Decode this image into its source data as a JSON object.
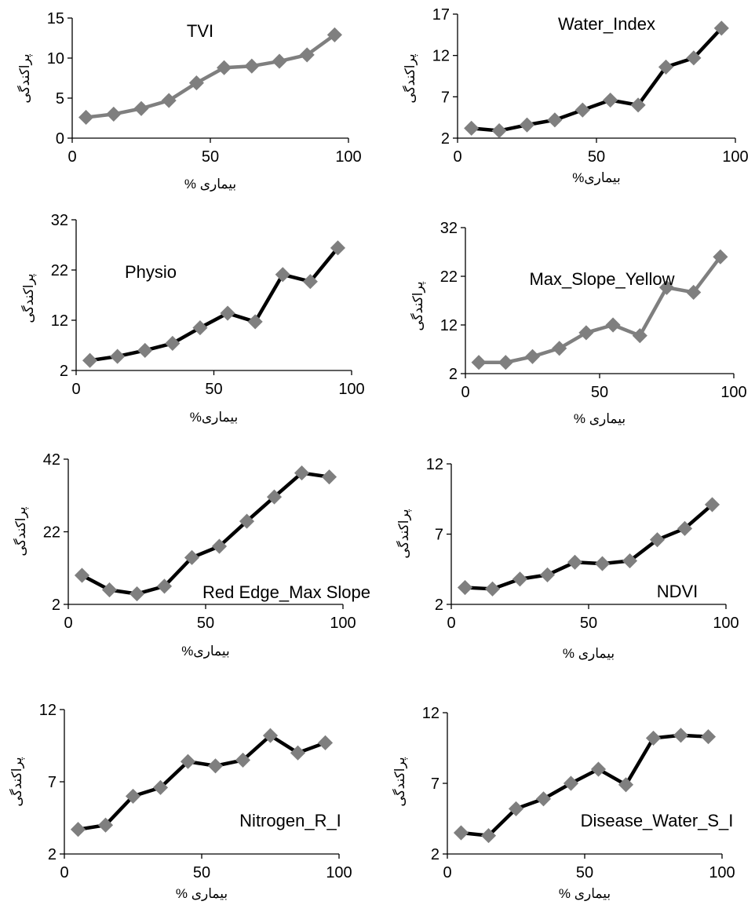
{
  "chart_data": [
    {
      "type": "line",
      "title": "TVI",
      "xlabel": "بیماری %",
      "ylabel": "پراکندگی",
      "xlim": [
        0,
        100
      ],
      "ylim": [
        0,
        15
      ],
      "xticks": [
        0,
        50,
        100
      ],
      "yticks": [
        0,
        5,
        10,
        15
      ],
      "x": [
        5,
        15,
        25,
        35,
        45,
        55,
        65,
        75,
        85,
        95
      ],
      "y": [
        2.6,
        3.0,
        3.7,
        4.7,
        6.9,
        8.8,
        9.0,
        9.6,
        10.4,
        12.9
      ],
      "line_color": "#7f7f7f",
      "marker_color": "#7f7f7f",
      "marker": "diamond",
      "grid": false,
      "legend": "none"
    },
    {
      "type": "line",
      "title": "Water_Index",
      "xlabel": "بیماری%",
      "ylabel": "پراکندگی",
      "xlim": [
        0,
        100
      ],
      "ylim": [
        2,
        17
      ],
      "xticks": [
        0,
        50,
        100
      ],
      "yticks": [
        2,
        7,
        12,
        17
      ],
      "x": [
        5,
        15,
        25,
        35,
        45,
        55,
        65,
        75,
        85,
        95
      ],
      "y": [
        3.2,
        2.9,
        3.6,
        4.2,
        5.4,
        6.6,
        6.0,
        10.6,
        11.7,
        15.3
      ],
      "line_color": "#000000",
      "marker_color": "#7f7f7f",
      "marker": "diamond",
      "grid": false,
      "legend": "none"
    },
    {
      "type": "line",
      "title": "Physio",
      "xlabel": "بیماری%",
      "ylabel": "پراکندگی",
      "xlim": [
        0,
        100
      ],
      "ylim": [
        2,
        32
      ],
      "xticks": [
        0,
        50,
        100
      ],
      "yticks": [
        2,
        12,
        22,
        32
      ],
      "x": [
        5,
        15,
        25,
        35,
        45,
        55,
        65,
        75,
        85,
        95
      ],
      "y": [
        4.0,
        4.8,
        6.0,
        7.4,
        10.5,
        13.4,
        11.7,
        21.1,
        19.7,
        26.4
      ],
      "line_color": "#000000",
      "marker_color": "#7f7f7f",
      "marker": "diamond",
      "grid": false,
      "legend": "none"
    },
    {
      "type": "line",
      "title": "Max_Slope_Yellow",
      "xlabel": "بیماری %",
      "ylabel": "پراکندگی",
      "xlim": [
        0,
        100
      ],
      "ylim": [
        2,
        32
      ],
      "xticks": [
        0,
        50,
        100
      ],
      "yticks": [
        2,
        12,
        22,
        32
      ],
      "x": [
        5,
        15,
        25,
        35,
        45,
        55,
        65,
        75,
        85,
        95
      ],
      "y": [
        4.3,
        4.3,
        5.5,
        7.2,
        10.4,
        12.0,
        9.8,
        19.7,
        18.7,
        26.0
      ],
      "line_color": "#7f7f7f",
      "marker_color": "#7f7f7f",
      "marker": "diamond",
      "grid": false,
      "legend": "none"
    },
    {
      "type": "line",
      "title": "Red Edge_Max Slope",
      "xlabel": "بیماری%",
      "ylabel": "پراکندگی",
      "xlim": [
        0,
        100
      ],
      "ylim": [
        2,
        42
      ],
      "xticks": [
        0,
        50,
        100
      ],
      "yticks": [
        2,
        22,
        42
      ],
      "x": [
        5,
        15,
        25,
        35,
        45,
        55,
        65,
        75,
        85,
        95
      ],
      "y": [
        10.0,
        6.0,
        4.9,
        7.0,
        14.9,
        18.0,
        24.9,
        31.6,
        38.2,
        37.1
      ],
      "line_color": "#000000",
      "marker_color": "#7f7f7f",
      "marker": "diamond",
      "grid": false,
      "legend": "none"
    },
    {
      "type": "line",
      "title": "NDVI",
      "xlabel": "بیماری %",
      "ylabel": "پراکندگی",
      "xlim": [
        0,
        100
      ],
      "ylim": [
        2,
        12
      ],
      "xticks": [
        0,
        50,
        100
      ],
      "yticks": [
        2,
        7,
        12
      ],
      "x": [
        5,
        15,
        25,
        35,
        45,
        55,
        65,
        75,
        85,
        95
      ],
      "y": [
        3.2,
        3.1,
        3.8,
        4.1,
        5.0,
        4.9,
        5.1,
        6.6,
        7.4,
        9.1
      ],
      "line_color": "#000000",
      "marker_color": "#7f7f7f",
      "marker": "diamond",
      "grid": false,
      "legend": "none"
    },
    {
      "type": "line",
      "title": "Nitrogen_R_I",
      "xlabel": "بیماری %",
      "ylabel": "پراکندگی",
      "xlim": [
        0,
        100
      ],
      "ylim": [
        2,
        12
      ],
      "xticks": [
        0,
        50,
        100
      ],
      "yticks": [
        2,
        7,
        12
      ],
      "x": [
        5,
        15,
        25,
        35,
        45,
        55,
        65,
        75,
        85,
        95
      ],
      "y": [
        3.7,
        4.0,
        6.0,
        6.6,
        8.4,
        8.1,
        8.5,
        10.2,
        9.0,
        9.7
      ],
      "line_color": "#000000",
      "marker_color": "#7f7f7f",
      "marker": "diamond",
      "grid": false,
      "legend": "none"
    },
    {
      "type": "line",
      "title": "Disease_Water_S_I",
      "xlabel": "بیماری %",
      "ylabel": "پراکندگی",
      "xlim": [
        0,
        100
      ],
      "ylim": [
        2,
        12
      ],
      "xticks": [
        0,
        50,
        100
      ],
      "yticks": [
        2,
        7,
        12
      ],
      "x": [
        5,
        15,
        25,
        35,
        45,
        55,
        65,
        75,
        85,
        95
      ],
      "y": [
        3.5,
        3.3,
        5.2,
        5.9,
        7.0,
        8.0,
        6.9,
        10.2,
        10.4,
        10.3
      ],
      "line_color": "#000000",
      "marker_color": "#7f7f7f",
      "marker": "diamond",
      "grid": false,
      "legend": "none"
    }
  ]
}
